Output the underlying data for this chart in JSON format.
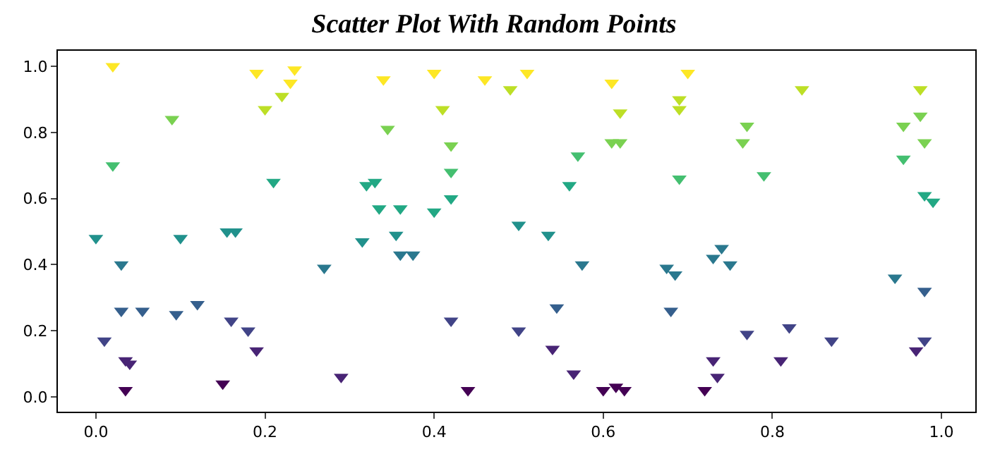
{
  "chart_data": {
    "type": "scatter",
    "title": "Scatter Plot With Random Points",
    "marker": "triangle",
    "xlim": [
      -0.045,
      1.04
    ],
    "ylim": [
      -0.045,
      1.047
    ],
    "xticks": [
      {
        "value": 0,
        "label": "0.0"
      },
      {
        "value": 0.2,
        "label": "0.2"
      },
      {
        "value": 0.4,
        "label": "0.4"
      },
      {
        "value": 0.6,
        "label": "0.6"
      },
      {
        "value": 0.8,
        "label": "0.8"
      },
      {
        "value": 1,
        "label": "1.0"
      }
    ],
    "yticks": [
      {
        "value": 0,
        "label": "0.0"
      },
      {
        "value": 0.2,
        "label": "0.2"
      },
      {
        "value": 0.4,
        "label": "0.4"
      },
      {
        "value": 0.6,
        "label": "0.6"
      },
      {
        "value": 0.8,
        "label": "0.8"
      },
      {
        "value": 1,
        "label": "1.0"
      }
    ],
    "x": [
      0.02,
      0.02,
      0.0,
      0.03,
      0.01,
      0.03,
      0.055,
      0.035,
      0.04,
      0.035,
      0.09,
      0.1,
      0.095,
      0.12,
      0.15,
      0.155,
      0.165,
      0.16,
      0.18,
      0.19,
      0.19,
      0.2,
      0.22,
      0.23,
      0.235,
      0.21,
      0.27,
      0.29,
      0.34,
      0.4,
      0.46,
      0.49,
      0.51,
      0.61,
      0.41,
      0.62,
      0.345,
      0.42,
      0.61,
      0.62,
      0.57,
      0.42,
      0.32,
      0.33,
      0.56,
      0.335,
      0.36,
      0.4,
      0.42,
      0.5,
      0.315,
      0.355,
      0.535,
      0.36,
      0.375,
      0.575,
      0.42,
      0.5,
      0.545,
      0.54,
      0.565,
      0.44,
      0.6,
      0.615,
      0.625,
      0.7,
      0.69,
      0.69,
      0.835,
      0.975,
      0.77,
      0.765,
      0.955,
      0.975,
      0.98,
      0.955,
      0.69,
      0.79,
      0.98,
      0.99,
      0.74,
      0.73,
      0.75,
      0.675,
      0.685,
      0.945,
      0.98,
      0.68,
      0.82,
      0.77,
      0.87,
      0.98,
      0.97,
      0.73,
      0.81,
      0.735,
      0.72
    ],
    "values": [
      1.0,
      0.7,
      0.48,
      0.4,
      0.17,
      0.26,
      0.26,
      0.11,
      0.1,
      0.02,
      0.84,
      0.48,
      0.25,
      0.28,
      0.04,
      0.5,
      0.5,
      0.23,
      0.2,
      0.14,
      0.98,
      0.87,
      0.91,
      0.95,
      0.99,
      0.65,
      0.39,
      0.06,
      0.96,
      0.98,
      0.96,
      0.93,
      0.98,
      0.95,
      0.87,
      0.86,
      0.81,
      0.76,
      0.77,
      0.77,
      0.73,
      0.68,
      0.64,
      0.65,
      0.64,
      0.57,
      0.57,
      0.56,
      0.6,
      0.52,
      0.47,
      0.49,
      0.49,
      0.43,
      0.43,
      0.4,
      0.23,
      0.2,
      0.27,
      0.145,
      0.07,
      0.02,
      0.02,
      0.03,
      0.02,
      0.98,
      0.9,
      0.87,
      0.93,
      0.93,
      0.82,
      0.77,
      0.82,
      0.85,
      0.77,
      0.72,
      0.66,
      0.67,
      0.61,
      0.59,
      0.45,
      0.42,
      0.4,
      0.39,
      0.37,
      0.36,
      0.32,
      0.26,
      0.21,
      0.19,
      0.17,
      0.17,
      0.14,
      0.11,
      0.11,
      0.06,
      0.02
    ],
    "colors": [
      "#fde725",
      "#44bf70",
      "#21918c",
      "#2a788e",
      "#414487",
      "#355f8d",
      "#355f8d",
      "#482475",
      "#482475",
      "#440154",
      "#7ad151",
      "#21918c",
      "#355f8d",
      "#355f8d",
      "#440154",
      "#21918c",
      "#21918c",
      "#414487",
      "#414487",
      "#482475",
      "#fde725",
      "#bddf26",
      "#bddf26",
      "#fde725",
      "#fde725",
      "#22a884",
      "#2a788e",
      "#482475",
      "#fde725",
      "#fde725",
      "#fde725",
      "#bddf26",
      "#fde725",
      "#fde725",
      "#bddf26",
      "#bddf26",
      "#7ad151",
      "#7ad151",
      "#7ad151",
      "#7ad151",
      "#44bf70",
      "#44bf70",
      "#22a884",
      "#22a884",
      "#22a884",
      "#22a884",
      "#22a884",
      "#22a884",
      "#22a884",
      "#21918c",
      "#21918c",
      "#21918c",
      "#21918c",
      "#2a788e",
      "#2a788e",
      "#2a788e",
      "#414487",
      "#414487",
      "#355f8d",
      "#482475",
      "#482475",
      "#440154",
      "#440154",
      "#440154",
      "#440154",
      "#fde725",
      "#bddf26",
      "#bddf26",
      "#bddf26",
      "#bddf26",
      "#7ad151",
      "#7ad151",
      "#7ad151",
      "#7ad151",
      "#7ad151",
      "#44bf70",
      "#44bf70",
      "#44bf70",
      "#22a884",
      "#22a884",
      "#2a788e",
      "#2a788e",
      "#2a788e",
      "#2a788e",
      "#2a788e",
      "#2a788e",
      "#355f8d",
      "#355f8d",
      "#414487",
      "#414487",
      "#414487",
      "#414487",
      "#482475",
      "#482475",
      "#482475",
      "#482475",
      "#440154"
    ]
  }
}
